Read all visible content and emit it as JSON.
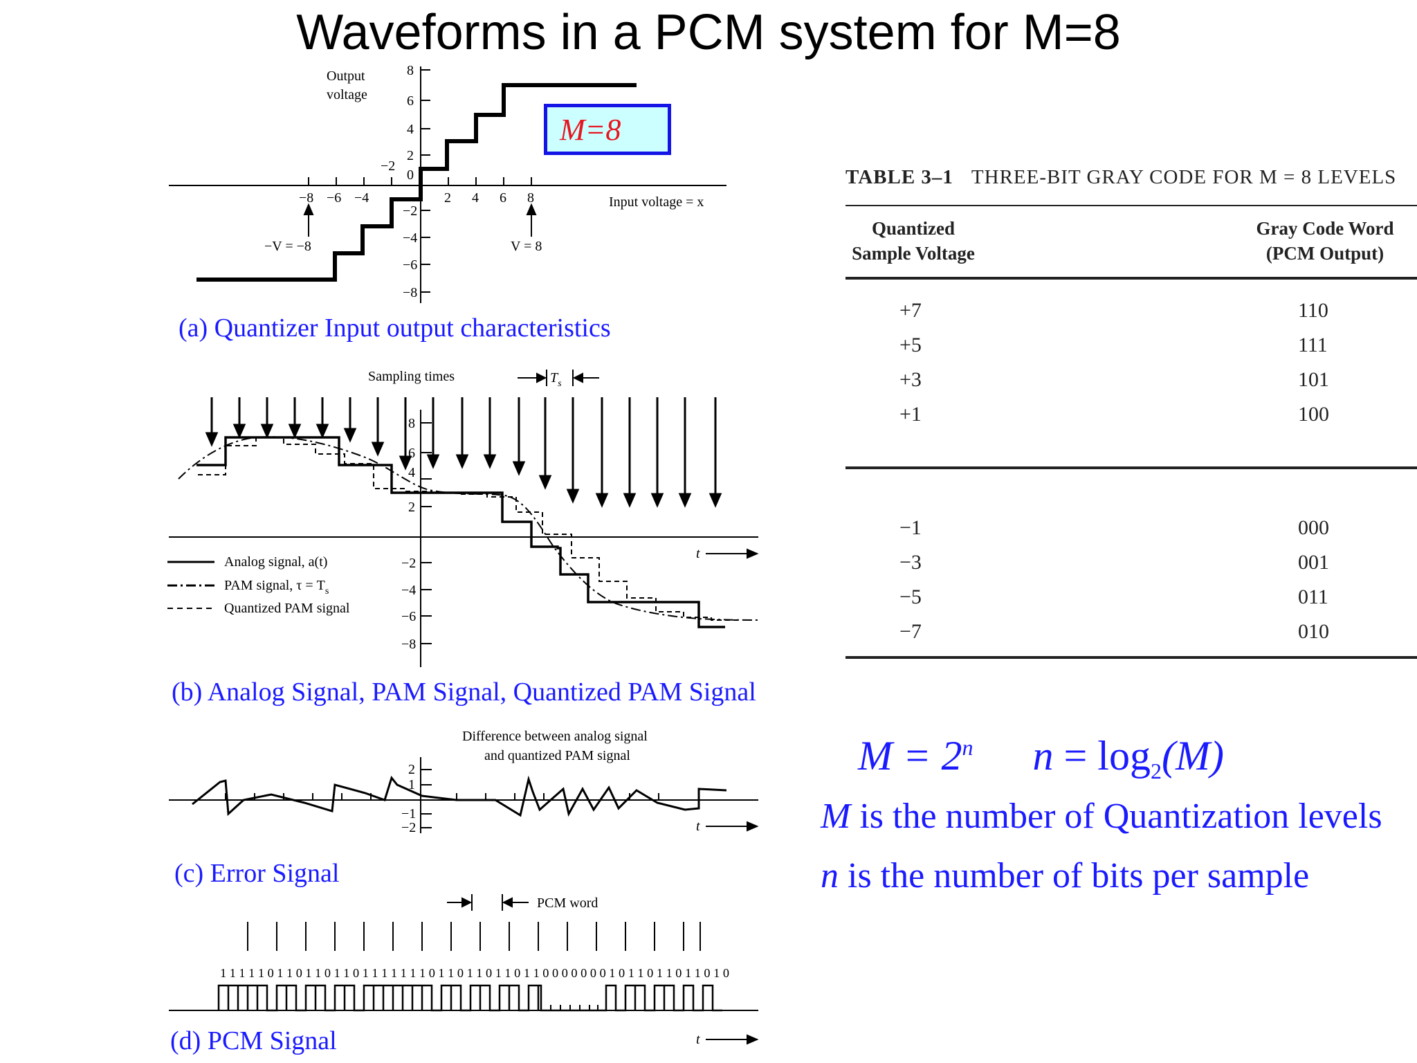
{
  "title": "Waveforms in a PCM system for M=8",
  "panels": {
    "a": {
      "caption": "(a) Quantizer Input output characteristics",
      "y_label_line1": "Output",
      "y_label_line2": "voltage",
      "x_label": "Input voltage = x",
      "y_ticks": [
        "8",
        "6",
        "4",
        "2",
        "0",
        "−2",
        "−4",
        "−6",
        "−8"
      ],
      "y_tick_minus2_offset": "−2",
      "x_ticks_neg": [
        "−8",
        "−6",
        "−4"
      ],
      "x_ticks_pos": [
        "2",
        "4",
        "6",
        "8"
      ],
      "neg_v_label": "−V = −8",
      "pos_v_label": "V = 8",
      "m_box": "M=8"
    },
    "b": {
      "caption": "(b) Analog Signal, PAM Signal, Quantized PAM Signal",
      "sampling_label": "Sampling times",
      "ts_label": "T",
      "ts_sub": "s",
      "y_ticks": [
        "8",
        "6",
        "4",
        "2",
        "−2",
        "−4",
        "−6",
        "−8"
      ],
      "t_label": "t",
      "legend": [
        "Analog signal, a(t)",
        "PAM signal, τ = T",
        "Quantized PAM signal"
      ],
      "legend_sub": "s"
    },
    "c": {
      "caption": "(c) Error Signal",
      "title_line1": "Difference between analog signal",
      "title_line2": "and quantized PAM signal",
      "y_ticks": [
        "2",
        "1",
        "−1",
        "−2"
      ],
      "t_label": "t"
    },
    "d": {
      "caption": "(d) PCM Signal",
      "word_label": "PCM word",
      "bits": "1 1 1 1 1 0 1 1 0 1 1 0 1 1 0 1 1 1 1 1 1 1 0 1 1 0 1 1 0 1 1 0 1 1 0 0 0 0 0 0 0 1 0 1 1 0 1 1 0 1 1 0 1 0",
      "t_label": "t"
    }
  },
  "table": {
    "caption_bold": "TABLE 3–1",
    "caption_text": "THREE-BIT GRAY CODE FOR M = 8 LEVELS",
    "header_left_line1": "Quantized",
    "header_left_line2": "Sample Voltage",
    "header_right_line1": "Gray Code Word",
    "header_right_line2": "(PCM Output)",
    "rows_top": [
      {
        "v": "+7",
        "c": "110"
      },
      {
        "v": "+5",
        "c": "111"
      },
      {
        "v": "+3",
        "c": "101"
      },
      {
        "v": "+1",
        "c": "100"
      }
    ],
    "rows_bottom": [
      {
        "v": "−1",
        "c": "000"
      },
      {
        "v": "−3",
        "c": "001"
      },
      {
        "v": "−5",
        "c": "011"
      },
      {
        "v": "−7",
        "c": "010"
      }
    ]
  },
  "formulas": {
    "f1_left": "M = 2",
    "f1_sup": "n",
    "f1_right_n": "n",
    "f1_right": " = log",
    "f1_sub": "2",
    "f1_arg": "(M)",
    "f2_var": "M",
    "f2_text": " is the number of Quantization levels",
    "f3_var": "n",
    "f3_text": " is the number of bits per sample"
  },
  "colors": {
    "caption_blue": "#1a1aff",
    "m_box_border": "#1414e6",
    "m_box_fill": "#ccffff",
    "m_box_text": "#e8141e"
  }
}
